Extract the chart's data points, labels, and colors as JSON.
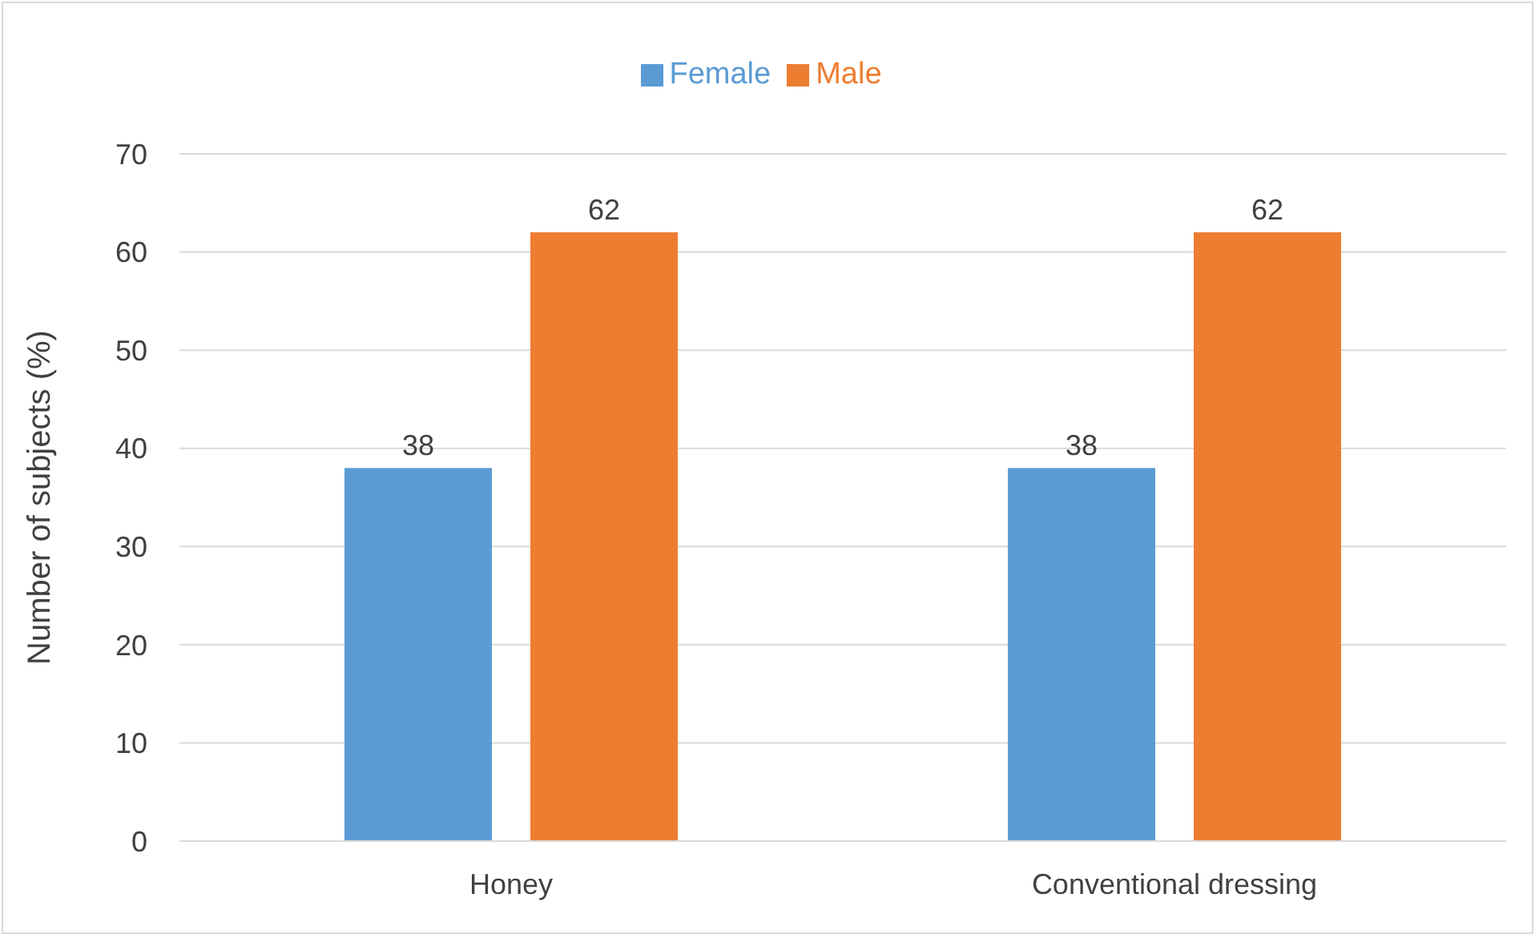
{
  "chart_data": {
    "type": "bar",
    "ylabel": "Number of subjects (%)",
    "categories": [
      "Honey",
      "Conventional dressing"
    ],
    "series": [
      {
        "name": "Female",
        "color": "#5b9bd5",
        "values": [
          38,
          38
        ]
      },
      {
        "name": "Male",
        "color": "#ed7d31",
        "values": [
          62,
          62
        ]
      }
    ],
    "ylim": [
      0,
      70
    ],
    "yticks": [
      0,
      10,
      20,
      30,
      40,
      50,
      60,
      70
    ],
    "grid": "y",
    "legend": "top",
    "data_labels": true
  }
}
